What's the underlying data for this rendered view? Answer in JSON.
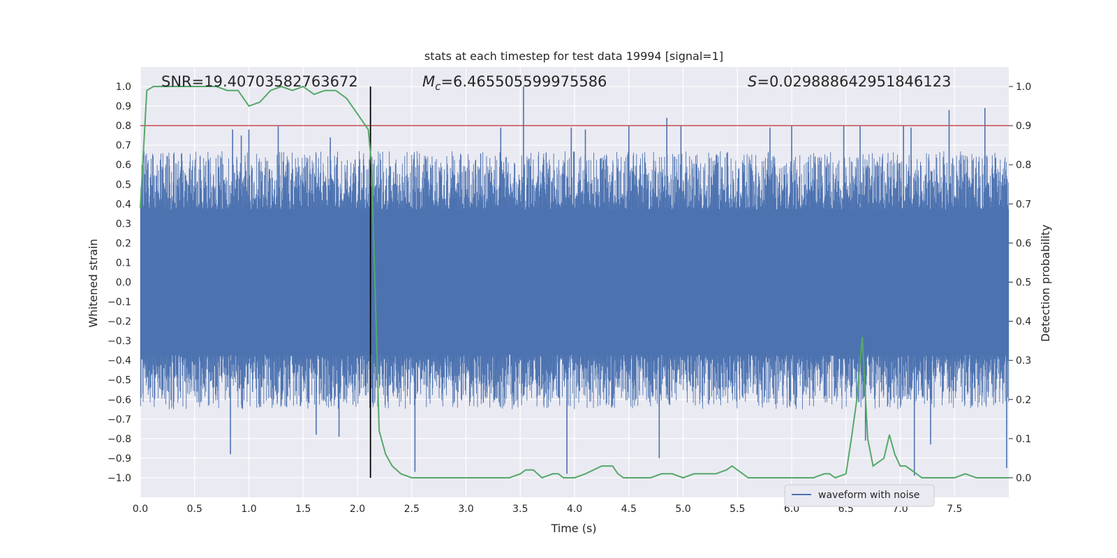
{
  "chart_data": {
    "type": "line",
    "title": "stats at each timestep for test data 19994 [signal=1]",
    "xlabel": "Time (s)",
    "ylabel": "Whitened strain",
    "ylabel_right": "Detection probability",
    "xlim": [
      0,
      8
    ],
    "ylim": [
      -1.1,
      1.1
    ],
    "ylim_right": [
      -0.05,
      1.05
    ],
    "x_ticks": [
      "0.0",
      "0.5",
      "1.0",
      "1.5",
      "2.0",
      "2.5",
      "3.0",
      "3.5",
      "4.0",
      "4.5",
      "5.0",
      "5.5",
      "6.0",
      "6.5",
      "7.0",
      "7.5"
    ],
    "y_ticks": [
      "1.0",
      "0.9",
      "0.8",
      "0.7",
      "0.6",
      "0.5",
      "0.4",
      "0.3",
      "0.2",
      "0.1",
      "0.0",
      "−0.1",
      "−0.2",
      "−0.3",
      "−0.4",
      "−0.5",
      "−0.6",
      "−0.7",
      "−0.8",
      "−0.9",
      "−1.0"
    ],
    "y_right_ticks": [
      "1.0",
      "0.9",
      "0.8",
      "0.7",
      "0.6",
      "0.5",
      "0.4",
      "0.3",
      "0.2",
      "0.1",
      "0.0"
    ],
    "annotations": {
      "snr": "SNR=19.40703582763672",
      "mc_label": "M",
      "mc_sub": "c",
      "mc_value": "=6.465505599975586",
      "s_label": "S",
      "s_value": "=0.029888642951846123"
    },
    "legend": {
      "label": "waveform with noise",
      "position": "lower-right"
    },
    "series": [
      {
        "name": "waveform with noise",
        "color": "#4c72b0",
        "envelope_core": 0.4,
        "peaks_upper": [
          [
            0.85,
            0.78
          ],
          [
            0.93,
            0.75
          ],
          [
            1.0,
            0.78
          ],
          [
            1.27,
            0.8
          ],
          [
            1.75,
            0.74
          ],
          [
            2.12,
            0.65
          ],
          [
            3.32,
            0.79
          ],
          [
            3.53,
            1.0
          ],
          [
            3.97,
            0.79
          ],
          [
            4.1,
            0.78
          ],
          [
            4.5,
            0.8
          ],
          [
            4.85,
            0.84
          ],
          [
            4.98,
            0.8
          ],
          [
            5.8,
            0.79
          ],
          [
            6.0,
            0.8
          ],
          [
            6.48,
            0.8
          ],
          [
            6.63,
            0.8
          ],
          [
            7.03,
            0.8
          ],
          [
            7.1,
            0.79
          ],
          [
            7.45,
            0.88
          ],
          [
            7.78,
            0.89
          ]
        ],
        "peaks_lower": [
          [
            0.83,
            -0.88
          ],
          [
            1.62,
            -0.78
          ],
          [
            1.83,
            -0.79
          ],
          [
            2.12,
            -0.71
          ],
          [
            2.53,
            -0.97
          ],
          [
            3.93,
            -0.98
          ],
          [
            4.78,
            -0.9
          ],
          [
            6.68,
            -0.81
          ],
          [
            7.13,
            -0.99
          ],
          [
            7.28,
            -0.83
          ],
          [
            7.98,
            -0.95
          ]
        ]
      },
      {
        "name": "detection probability",
        "color": "#55a868",
        "axis": "right",
        "x": [
          0.0,
          0.06,
          0.12,
          0.2,
          0.3,
          0.4,
          0.5,
          0.6,
          0.7,
          0.8,
          0.9,
          1.0,
          1.1,
          1.2,
          1.3,
          1.4,
          1.5,
          1.6,
          1.7,
          1.8,
          1.9,
          2.0,
          2.1,
          2.13,
          2.2,
          2.26,
          2.32,
          2.4,
          2.5,
          2.6,
          2.8,
          3.0,
          3.2,
          3.4,
          3.5,
          3.55,
          3.62,
          3.7,
          3.8,
          3.85,
          3.9,
          4.0,
          4.1,
          4.25,
          4.3,
          4.35,
          4.4,
          4.45,
          4.55,
          4.7,
          4.8,
          4.9,
          5.0,
          5.1,
          5.2,
          5.3,
          5.4,
          5.45,
          5.5,
          5.6,
          5.7,
          5.8,
          5.95,
          6.1,
          6.2,
          6.3,
          6.35,
          6.4,
          6.5,
          6.55,
          6.6,
          6.65,
          6.7,
          6.75,
          6.85,
          6.9,
          6.95,
          7.0,
          7.05,
          7.1,
          7.15,
          7.2,
          7.3,
          7.5,
          7.6,
          7.7,
          7.8,
          7.9,
          8.0
        ],
        "values": [
          0.69,
          0.99,
          1.0,
          1.0,
          1.0,
          1.0,
          1.0,
          1.0,
          1.0,
          0.99,
          0.99,
          0.95,
          0.96,
          0.99,
          1.0,
          0.99,
          1.0,
          0.98,
          0.99,
          0.99,
          0.97,
          0.93,
          0.89,
          0.8,
          0.12,
          0.06,
          0.03,
          0.01,
          0.0,
          0.0,
          0.0,
          0.0,
          0.0,
          0.0,
          0.01,
          0.02,
          0.02,
          0.0,
          0.01,
          0.01,
          0.0,
          0.0,
          0.01,
          0.03,
          0.03,
          0.03,
          0.01,
          0.0,
          0.0,
          0.0,
          0.01,
          0.01,
          0.0,
          0.01,
          0.01,
          0.01,
          0.02,
          0.03,
          0.02,
          0.0,
          0.0,
          0.0,
          0.0,
          0.0,
          0.0,
          0.01,
          0.01,
          0.0,
          0.01,
          0.1,
          0.2,
          0.36,
          0.1,
          0.03,
          0.05,
          0.11,
          0.06,
          0.03,
          0.03,
          0.02,
          0.01,
          0.0,
          0.0,
          0.0,
          0.01,
          0.0,
          0.0,
          0.0,
          0.0
        ]
      }
    ],
    "hlines": [
      {
        "name": "threshold",
        "y_right": 0.9,
        "color": "#c44e52"
      }
    ],
    "vlines": [
      {
        "name": "trigger-time",
        "x": 2.12,
        "y_range": [
          -1.0,
          1.0
        ],
        "color": "#000000"
      }
    ],
    "style": {
      "background": "#eaeaf2",
      "grid_color": "#ffffff",
      "grid": true
    }
  }
}
